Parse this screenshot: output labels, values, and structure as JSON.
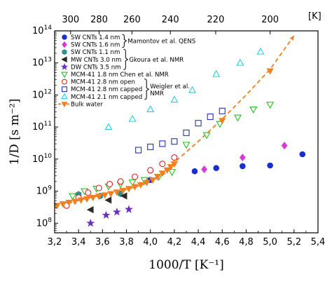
{
  "chart_data": {
    "type": "scatter",
    "xlabel": "1000/T  [K⁻¹]",
    "ylabel": "1/D  [s m⁻²]",
    "top_axis_unit": "[K]",
    "xlim": [
      3.2,
      5.4
    ],
    "ylim_log10": [
      7.7,
      14.0
    ],
    "x_ticks": [
      "3,2",
      "3,4",
      "3,6",
      "3,8",
      "4,0",
      "4,2",
      "4,4",
      "4,6",
      "4,8",
      "5,0",
      "5,2",
      "5,4"
    ],
    "x_tick_values": [
      3.2,
      3.4,
      3.6,
      3.8,
      4.0,
      4.2,
      4.4,
      4.6,
      4.8,
      5.0,
      5.2,
      5.4
    ],
    "y_ticks": [
      {
        "exp": 8,
        "label_base": "10",
        "label_exp": "8"
      },
      {
        "exp": 9,
        "label_base": "10",
        "label_exp": "9"
      },
      {
        "exp": 10,
        "label_base": "10",
        "label_exp": "10"
      },
      {
        "exp": 11,
        "label_base": "10",
        "label_exp": "11"
      },
      {
        "exp": 12,
        "label_base": "10",
        "label_exp": "12"
      },
      {
        "exp": 13,
        "label_base": "10",
        "label_exp": "13"
      },
      {
        "exp": 14,
        "label_base": "10",
        "label_exp": "14"
      }
    ],
    "top_ticks": [
      {
        "T": 300,
        "label": "300"
      },
      {
        "T": 280,
        "label": "280"
      },
      {
        "T": 260,
        "label": "260"
      },
      {
        "T": 240,
        "label": "240"
      },
      {
        "T": 220,
        "label": "220"
      },
      {
        "T": 200,
        "label": "200"
      }
    ],
    "series": [
      {
        "name": "SW CNTs 1.4 nm",
        "marker": "circle",
        "filled": true,
        "color": "#1a2fd0",
        "x": [
          4.0,
          4.37,
          4.55,
          4.77,
          5.0,
          5.27
        ],
        "log10y": [
          9.35,
          9.62,
          9.72,
          9.78,
          9.8,
          10.15
        ]
      },
      {
        "name": "SW CNTs 1.6 nm",
        "marker": "diamond",
        "filled": true,
        "color": "#d63ad6",
        "x": [
          4.45,
          4.77,
          5.12
        ],
        "log10y": [
          9.68,
          10.05,
          10.42
        ]
      },
      {
        "name": "SW CNTs 1.1 nm",
        "marker": "hexagon",
        "filled": true,
        "color": "#2f8f8f",
        "x": [
          3.4,
          3.58,
          3.75
        ],
        "log10y": [
          8.9,
          8.85,
          8.92
        ]
      },
      {
        "name": "MW CNTs 3.0 nm",
        "marker": "tri-left",
        "filled": true,
        "color": "#2a2a2a",
        "x": [
          3.5,
          3.65,
          3.78
        ],
        "log10y": [
          8.42,
          8.72,
          8.85
        ]
      },
      {
        "name": "DW CNTs 3.5 nm",
        "marker": "star",
        "filled": true,
        "color": "#6a2fc0",
        "x": [
          3.5,
          3.63,
          3.72,
          3.82
        ],
        "log10y": [
          8.0,
          8.25,
          8.35,
          8.43
        ]
      },
      {
        "name": "MCM-41 1.8 nm",
        "marker": "tri-down",
        "filled": false,
        "color": "#22c022",
        "x": [
          3.35,
          3.45,
          3.55,
          3.65,
          3.75,
          3.85,
          3.95,
          4.07,
          4.18,
          4.3,
          4.47,
          4.58,
          4.73,
          4.86,
          5.0
        ],
        "log10y": [
          8.85,
          9.0,
          9.08,
          9.15,
          9.22,
          9.28,
          9.35,
          9.45,
          9.6,
          10.45,
          10.75,
          11.1,
          11.3,
          11.55,
          11.7
        ]
      },
      {
        "name": "MCM-41 2.8 nm open",
        "marker": "circle",
        "filled": false,
        "color": "#e02020",
        "x": [
          3.3,
          3.4,
          3.48,
          3.57,
          3.66,
          3.75,
          3.87,
          4.0,
          4.1,
          4.2
        ],
        "log10y": [
          8.55,
          8.8,
          8.95,
          9.1,
          9.22,
          9.3,
          9.45,
          9.65,
          9.85,
          10.05
        ]
      },
      {
        "name": "MCM-41 2.8 nm capped",
        "marker": "square",
        "filled": false,
        "color": "#2230c8",
        "x": [
          3.9,
          4.0,
          4.1,
          4.2,
          4.3,
          4.4,
          4.5,
          4.6
        ],
        "log10y": [
          10.28,
          10.38,
          10.48,
          10.55,
          10.82,
          11.12,
          11.32,
          11.5
        ]
      },
      {
        "name": "MCM-41 2.1 nm capped",
        "marker": "triangle-up",
        "filled": false,
        "color": "#22cfe0",
        "x": [
          3.65,
          3.85,
          4.0,
          4.2,
          4.35,
          4.55,
          4.75,
          4.92
        ],
        "log10y": [
          11.0,
          11.25,
          11.55,
          11.85,
          12.15,
          12.65,
          13.0,
          13.35
        ]
      },
      {
        "name": "Bulk water",
        "marker": "tri-down",
        "filled": true,
        "color": "#f08020",
        "x": [
          3.22,
          3.27,
          3.32,
          3.37,
          3.42,
          3.47,
          3.52,
          3.57,
          3.62,
          3.67,
          3.72,
          3.77,
          3.82,
          3.87,
          3.92,
          3.97,
          4.02,
          4.06,
          4.1,
          4.14,
          4.17,
          4.2,
          4.6,
          5.0
        ],
        "log10y": [
          8.55,
          8.6,
          8.65,
          8.68,
          8.72,
          8.76,
          8.8,
          8.84,
          8.88,
          8.92,
          8.97,
          9.02,
          9.08,
          9.14,
          9.2,
          9.27,
          9.35,
          9.45,
          9.56,
          9.66,
          9.76,
          9.85,
          11.2,
          12.75
        ]
      }
    ],
    "fit_line": {
      "color": "#f08020",
      "style": "dashed",
      "x": [
        3.2,
        3.4,
        3.6,
        3.8,
        3.95,
        4.05,
        4.12,
        4.2,
        4.4,
        4.6,
        4.8,
        5.0,
        5.2
      ],
      "log10y": [
        8.5,
        8.72,
        8.88,
        9.05,
        9.22,
        9.38,
        9.55,
        9.9,
        10.55,
        11.25,
        12.0,
        12.8,
        13.85
      ]
    },
    "legend": {
      "placement": "top-left",
      "entries": [
        {
          "marker": "circle",
          "filled": true,
          "color": "#1a2fd0",
          "label": "SW CNTs 1.4 nm"
        },
        {
          "marker": "diamond",
          "filled": true,
          "color": "#d63ad6",
          "label": "SW CNTs 1.6 nm"
        },
        {
          "marker": "hexagon",
          "filled": true,
          "color": "#2f8f8f",
          "label": "SW CNTs 1.1 nm"
        },
        {
          "marker": "tri-left",
          "filled": true,
          "color": "#2a2a2a",
          "label": "MW CNTs 3.0 nm"
        },
        {
          "marker": "star",
          "filled": true,
          "color": "#6a2fc0",
          "label": "DW CNTs 3.5 nm"
        },
        {
          "marker": "tri-down",
          "filled": false,
          "color": "#22c022",
          "label": "MCM-41 1.8 nm Chen et al. NMR"
        },
        {
          "marker": "circle",
          "filled": false,
          "color": "#e02020",
          "label": "MCM-41 2.8 nm open"
        },
        {
          "marker": "square",
          "filled": false,
          "color": "#2230c8",
          "label": "MCM-41 2.8 nm capped"
        },
        {
          "marker": "triangle-up",
          "filled": false,
          "color": "#22cfe0",
          "label": "MCM-41 2.1 nm capped"
        },
        {
          "marker": "tri-down-line",
          "filled": true,
          "color": "#f08020",
          "label": "Bulk water"
        }
      ],
      "references": [
        {
          "label": "Mamontov et al. QENS",
          "entries": [
            0,
            1
          ]
        },
        {
          "label": "Gkoura et al. NMR",
          "entries": [
            2,
            4
          ]
        },
        {
          "label": "Weigler et al.",
          "entries": [
            6,
            8
          ]
        },
        {
          "label": "NMR",
          "entries": [
            6,
            8
          ]
        }
      ]
    }
  }
}
